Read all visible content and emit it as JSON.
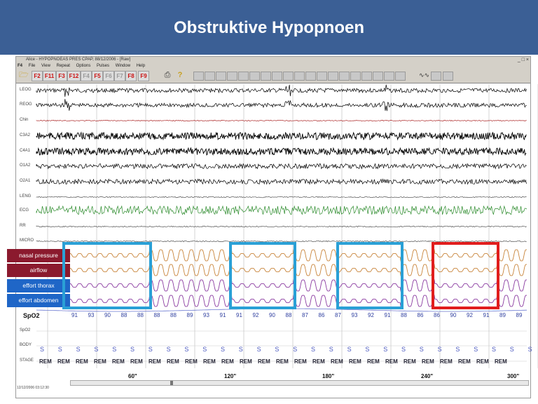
{
  "slide": {
    "title": "Obstruktive Hypopnoen"
  },
  "window": {
    "title": "Alice - HYPOPNOEAS PRES CPAP, 88/12/2006 - [Raw]",
    "controls": [
      "_",
      "□",
      "×"
    ],
    "menu": [
      "F4",
      "File",
      "View",
      "Repeat",
      "Options",
      "Pulses",
      "Window",
      "Help"
    ]
  },
  "toolbar": {
    "function_keys": [
      {
        "label": "F2",
        "color": "#cc1111"
      },
      {
        "label": "F11",
        "color": "#cc1111"
      },
      {
        "label": "F3",
        "color": "#cc1111"
      },
      {
        "label": "F12",
        "color": "#cc1111"
      },
      {
        "label": "F4",
        "color": "#999999"
      },
      {
        "label": "F5",
        "color": "#cc1111"
      },
      {
        "label": "F6",
        "color": "#999999"
      },
      {
        "label": "F7",
        "color": "#999999"
      },
      {
        "label": "F8",
        "color": "#cc1111"
      },
      {
        "label": "F9",
        "color": "#cc1111"
      }
    ],
    "icons": [
      "folder-icon",
      "printer-icon",
      "help-icon"
    ]
  },
  "channels": [
    "LEOG",
    "REOG",
    "Chin",
    "C3A2",
    "C4A1",
    "O1A2",
    "O2A1",
    "LENG",
    "ECG",
    "RR",
    "MICRO"
  ],
  "respiratory_channels": [
    {
      "label": "nasal pressure",
      "color": "#8b1a2e"
    },
    {
      "label": "airflow",
      "color": "#8b1a2e"
    },
    {
      "label": "effort thorax",
      "color": "#1f66c7"
    },
    {
      "label": "effort abdomen",
      "color": "#1f66c7"
    }
  ],
  "spo2": {
    "label": "SpO2",
    "values": [
      "91",
      "93",
      "90",
      "88",
      "88",
      "88",
      "88",
      "89",
      "93",
      "91",
      "91",
      "92",
      "90",
      "88",
      "87",
      "86",
      "87",
      "93",
      "92",
      "91",
      "88",
      "86",
      "86",
      "90",
      "92",
      "91",
      "89",
      "89"
    ]
  },
  "lower_channels": [
    "SpO2",
    "BODY",
    "STAGE"
  ],
  "body_positions": [
    "S",
    "S",
    "S",
    "S",
    "S",
    "S",
    "S",
    "S",
    "S",
    "S",
    "S",
    "S",
    "S",
    "S",
    "S",
    "S",
    "S",
    "S",
    "S",
    "S",
    "S",
    "S",
    "S",
    "S",
    "S",
    "S",
    "S",
    "S"
  ],
  "stages": [
    "REM",
    "REM",
    "REM",
    "REM",
    "REM",
    "REM",
    "REM",
    "REM",
    "REM",
    "REM",
    "REM",
    "REM",
    "REM",
    "REM",
    "REM",
    "REM",
    "REM",
    "REM",
    "REM",
    "REM",
    "REM",
    "REM",
    "REM",
    "REM",
    "REM",
    "REM"
  ],
  "time_axis": [
    "60\"",
    "120\"",
    "180\"",
    "240\"",
    "300\""
  ],
  "highlights": [
    {
      "kind": "hypopnea",
      "color": "#2aa0d6"
    },
    {
      "kind": "hypopnea",
      "color": "#2aa0d6"
    },
    {
      "kind": "hypopnea",
      "color": "#2aa0d6"
    },
    {
      "kind": "hypopnea",
      "color": "#e11d1d"
    }
  ],
  "status_text": "12/12/2006 03:12:30",
  "colors": {
    "banner": "#3b5f95",
    "eeg_trace": "#000000",
    "ecg_trace": "#2a8a2a",
    "flow_trace": "#c8843a",
    "effort_trace": "#8a3aa0",
    "spo2_text": "#3040a0",
    "highlight_blue": "#2aa0d6",
    "highlight_red": "#e11d1d"
  }
}
